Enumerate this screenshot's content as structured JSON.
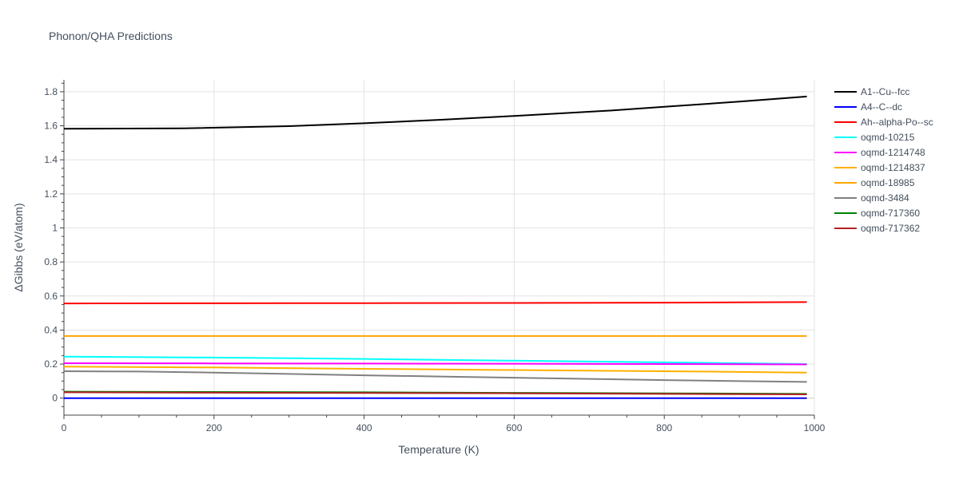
{
  "chart_data": {
    "type": "line",
    "title": "Phonon/QHA Predictions",
    "xlabel": "Temperature (K)",
    "ylabel": "ΔGibbs (eV/atom)",
    "xlim": [
      0,
      1000
    ],
    "ylim": [
      -0.1,
      1.87
    ],
    "xticks": [
      0,
      200,
      400,
      600,
      800,
      1000
    ],
    "yticks": [
      0,
      0.2,
      0.4,
      0.6,
      0.8,
      1,
      1.2,
      1.4,
      1.6,
      1.8
    ],
    "grid": true,
    "legend_position": "right",
    "series": [
      {
        "name": "A1--Cu--fcc",
        "color": "#000000",
        "points": [
          [
            0,
            1.583
          ],
          [
            160,
            1.585
          ],
          [
            300,
            1.598
          ],
          [
            400,
            1.615
          ],
          [
            500,
            1.635
          ],
          [
            600,
            1.658
          ],
          [
            730,
            1.69
          ],
          [
            800,
            1.712
          ],
          [
            900,
            1.742
          ],
          [
            990,
            1.772
          ]
        ]
      },
      {
        "name": "A4--C--dc",
        "color": "#0000ff",
        "points": [
          [
            0,
            0.0
          ],
          [
            990,
            0.0
          ]
        ]
      },
      {
        "name": "Ah--alpha-Po--sc",
        "color": "#ff0000",
        "points": [
          [
            0,
            0.556
          ],
          [
            200,
            0.557
          ],
          [
            400,
            0.558
          ],
          [
            600,
            0.559
          ],
          [
            800,
            0.561
          ],
          [
            990,
            0.564
          ]
        ]
      },
      {
        "name": "oqmd-10215",
        "color": "#00ffff",
        "points": [
          [
            0,
            0.244
          ],
          [
            200,
            0.238
          ],
          [
            400,
            0.23
          ],
          [
            600,
            0.22
          ],
          [
            800,
            0.21
          ],
          [
            990,
            0.2
          ]
        ]
      },
      {
        "name": "oqmd-1214748",
        "color": "#ff00ff",
        "points": [
          [
            0,
            0.205
          ],
          [
            200,
            0.204
          ],
          [
            400,
            0.203
          ],
          [
            600,
            0.202
          ],
          [
            800,
            0.2
          ],
          [
            990,
            0.198
          ]
        ]
      },
      {
        "name": "oqmd-1214837",
        "color": "#ffb000",
        "points": [
          [
            0,
            0.185
          ],
          [
            200,
            0.18
          ],
          [
            400,
            0.172
          ],
          [
            600,
            0.165
          ],
          [
            800,
            0.158
          ],
          [
            990,
            0.15
          ]
        ]
      },
      {
        "name": "oqmd-18985",
        "color": "#ffa500",
        "points": [
          [
            0,
            0.365
          ],
          [
            200,
            0.365
          ],
          [
            400,
            0.365
          ],
          [
            600,
            0.365
          ],
          [
            800,
            0.365
          ],
          [
            990,
            0.365
          ]
        ]
      },
      {
        "name": "oqmd-3484",
        "color": "#808080",
        "points": [
          [
            0,
            0.158
          ],
          [
            100,
            0.156
          ],
          [
            200,
            0.15
          ],
          [
            300,
            0.142
          ],
          [
            400,
            0.134
          ],
          [
            500,
            0.127
          ],
          [
            600,
            0.12
          ],
          [
            700,
            0.113
          ],
          [
            800,
            0.106
          ],
          [
            900,
            0.1
          ],
          [
            990,
            0.095
          ]
        ]
      },
      {
        "name": "oqmd-717360",
        "color": "#008000",
        "points": [
          [
            0,
            0.038
          ],
          [
            200,
            0.036
          ],
          [
            400,
            0.034
          ],
          [
            600,
            0.031
          ],
          [
            800,
            0.028
          ],
          [
            990,
            0.025
          ]
        ]
      },
      {
        "name": "oqmd-717362",
        "color": "#b22222",
        "points": [
          [
            0,
            0.034
          ],
          [
            200,
            0.032
          ],
          [
            400,
            0.03
          ],
          [
            600,
            0.028
          ],
          [
            800,
            0.025
          ],
          [
            990,
            0.022
          ]
        ]
      }
    ]
  }
}
